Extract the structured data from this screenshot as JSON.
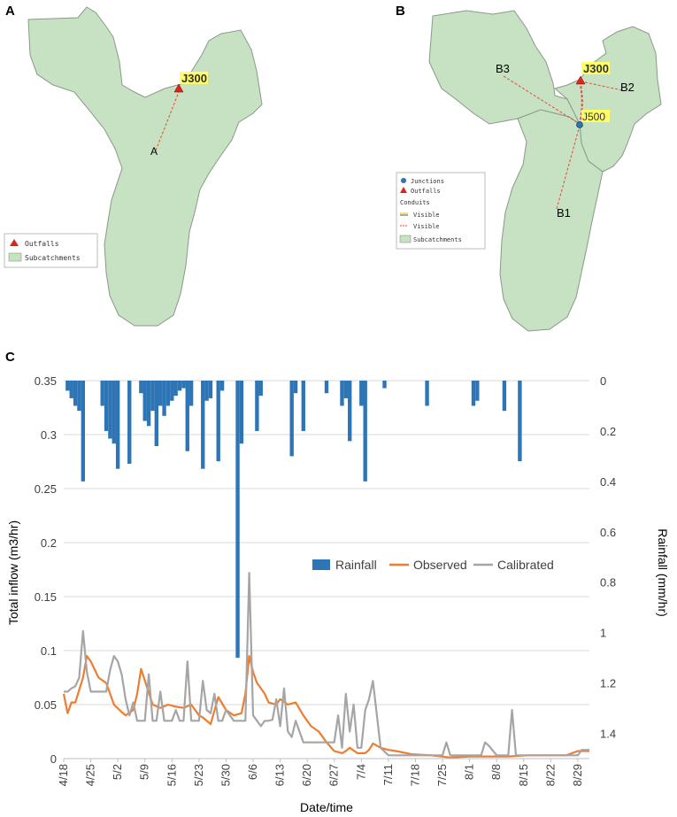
{
  "panels": {
    "a": {
      "label": "A",
      "junction_label": "J300",
      "subcatchment_label": "A",
      "legend": [
        "Outfalls",
        "Subcatchments"
      ]
    },
    "b": {
      "label": "B",
      "outfall_label": "J300",
      "junction_label": "J500",
      "subcatchment_labels": [
        "B1",
        "B2",
        "B3"
      ],
      "legend": [
        "Junctions",
        "Outfalls",
        "Conduits",
        "Visible",
        "Visible",
        "Subcatchments"
      ]
    },
    "c": {
      "label": "C"
    }
  },
  "colors": {
    "subcatchment_fill": "#c6e2c2",
    "subcatchment_stroke": "#8a9a88",
    "outfall": "#d9261c",
    "junction": "#2e74b5",
    "conduit": "#e8493a",
    "label_highlight": "#ffff66",
    "rainfall": "#2e75b6",
    "observed": "#ed7d31",
    "calibrated": "#a5a5a5"
  },
  "chart_data": {
    "type": "line",
    "title": "",
    "xlabel": "Date/time",
    "ylabel": "Total inflow (m3/hr)",
    "y2label": "Rainfall (mm/hr)",
    "ylim": [
      0,
      0.35
    ],
    "y2lim": [
      0,
      1.5
    ],
    "y2_inverted": true,
    "yticks": [
      "0",
      "0.05",
      "0.1",
      "0.15",
      "0.2",
      "0.25",
      "0.3",
      "0.35"
    ],
    "y2ticks": [
      "0",
      "0.2",
      "0.4",
      "0.6",
      "0.8",
      "1",
      "1.2",
      "1.4"
    ],
    "xlim_days": [
      0,
      136
    ],
    "xticks": [
      "4/18",
      "4/25",
      "5/2",
      "5/9",
      "5/16",
      "5/23",
      "5/30",
      "6/6",
      "6/13",
      "6/20",
      "6/27",
      "7/4",
      "7/11",
      "7/18",
      "7/25",
      "8/1",
      "8/8",
      "8/15",
      "8/22",
      "8/29"
    ],
    "legend": [
      "Rainfall",
      "Observed",
      "Calibrated"
    ],
    "rainfall": {
      "name": "Rainfall",
      "days": [
        1,
        2,
        3,
        4,
        5,
        10,
        11,
        12,
        13,
        14,
        17,
        20,
        21,
        22,
        23,
        24,
        25,
        26,
        27,
        28,
        29,
        30,
        31,
        32,
        33,
        36,
        37,
        38,
        40,
        41,
        45,
        46,
        50,
        51,
        59,
        60,
        62,
        68,
        72,
        73,
        74,
        77,
        78,
        83,
        94,
        106,
        107,
        114,
        118
      ],
      "values": [
        0.04,
        0.07,
        0.1,
        0.12,
        0.4,
        0.1,
        0.2,
        0.23,
        0.25,
        0.35,
        0.33,
        0.05,
        0.16,
        0.18,
        0.12,
        0.26,
        0.1,
        0.14,
        0.1,
        0.08,
        0.06,
        0.04,
        0.03,
        0.28,
        0.1,
        0.35,
        0.08,
        0.07,
        0.32,
        0.04,
        1.1,
        0.25,
        0.2,
        0.06,
        0.3,
        0.05,
        0.2,
        0.05,
        0.1,
        0.07,
        0.24,
        0.1,
        0.4,
        0.03,
        0.1,
        0.1,
        0.08,
        0.12,
        0.32
      ]
    },
    "series": [
      {
        "name": "Observed",
        "x": [
          0,
          1,
          2,
          3,
          5,
          6,
          7,
          9,
          11,
          12,
          13,
          15,
          16,
          18,
          19,
          20,
          23,
          25,
          27,
          29,
          31,
          33,
          34,
          35,
          36,
          38,
          40,
          42,
          44,
          46,
          47,
          48,
          49,
          50,
          51,
          52,
          53,
          55,
          56,
          58,
          60,
          62,
          64,
          66,
          68,
          70,
          72,
          73,
          74,
          76,
          78,
          79,
          80,
          82,
          84,
          86,
          90,
          95,
          100,
          105,
          110,
          115,
          120,
          125,
          130,
          133,
          136
        ],
        "values": [
          0.06,
          0.042,
          0.052,
          0.052,
          0.075,
          0.095,
          0.09,
          0.075,
          0.07,
          0.06,
          0.05,
          0.043,
          0.04,
          0.045,
          0.06,
          0.083,
          0.05,
          0.047,
          0.05,
          0.048,
          0.047,
          0.05,
          0.045,
          0.04,
          0.038,
          0.032,
          0.057,
          0.045,
          0.04,
          0.042,
          0.06,
          0.095,
          0.08,
          0.07,
          0.065,
          0.06,
          0.052,
          0.05,
          0.055,
          0.05,
          0.052,
          0.04,
          0.03,
          0.025,
          0.015,
          0.007,
          0.005,
          0.007,
          0.01,
          0.005,
          0.005,
          0.008,
          0.014,
          0.01,
          0.008,
          0.007,
          0.004,
          0.003,
          0.001,
          0.002,
          0.002,
          0.002,
          0.003,
          0.003,
          0.003,
          0.007,
          0.007
        ]
      },
      {
        "name": "Calibrated",
        "x": [
          0,
          1,
          2,
          3,
          4,
          5,
          6,
          7,
          9,
          10,
          11,
          12,
          13,
          14,
          15,
          16,
          17,
          18,
          19,
          20,
          21,
          22,
          23,
          24,
          25,
          26,
          27,
          28,
          29,
          30,
          31,
          32,
          33,
          34,
          35,
          36,
          37,
          38,
          39,
          40,
          41,
          42,
          43,
          44,
          45,
          46,
          47,
          48,
          49,
          50,
          51,
          52,
          53,
          54,
          55,
          56,
          57,
          58,
          59,
          60,
          62,
          64,
          66,
          68,
          70,
          71,
          72,
          73,
          74,
          75,
          76,
          77,
          78,
          79,
          80,
          82,
          84,
          85,
          86,
          88,
          90,
          95,
          98,
          99,
          100,
          105,
          108,
          109,
          110,
          112,
          113,
          114,
          115,
          116,
          117,
          120,
          125,
          130,
          133,
          134,
          136
        ],
        "values": [
          0.062,
          0.062,
          0.065,
          0.067,
          0.075,
          0.118,
          0.08,
          0.062,
          0.062,
          0.062,
          0.062,
          0.082,
          0.095,
          0.09,
          0.078,
          0.055,
          0.04,
          0.052,
          0.035,
          0.035,
          0.035,
          0.078,
          0.035,
          0.035,
          0.062,
          0.035,
          0.035,
          0.035,
          0.045,
          0.035,
          0.035,
          0.09,
          0.035,
          0.035,
          0.035,
          0.072,
          0.045,
          0.042,
          0.06,
          0.035,
          0.035,
          0.045,
          0.04,
          0.035,
          0.035,
          0.035,
          0.035,
          0.172,
          0.04,
          0.035,
          0.03,
          0.035,
          0.035,
          0.036,
          0.055,
          0.03,
          0.065,
          0.025,
          0.02,
          0.035,
          0.015,
          0.015,
          0.015,
          0.015,
          0.015,
          0.04,
          0.01,
          0.06,
          0.025,
          0.05,
          0.01,
          0.01,
          0.045,
          0.055,
          0.072,
          0.01,
          0.003,
          0.003,
          0.003,
          0.003,
          0.003,
          0.003,
          0.003,
          0.015,
          0.003,
          0.003,
          0.003,
          0.015,
          0.012,
          0.003,
          0.003,
          0.003,
          0.003,
          0.045,
          0.003,
          0.003,
          0.003,
          0.003,
          0.003,
          0.008,
          0.008
        ]
      }
    ]
  }
}
